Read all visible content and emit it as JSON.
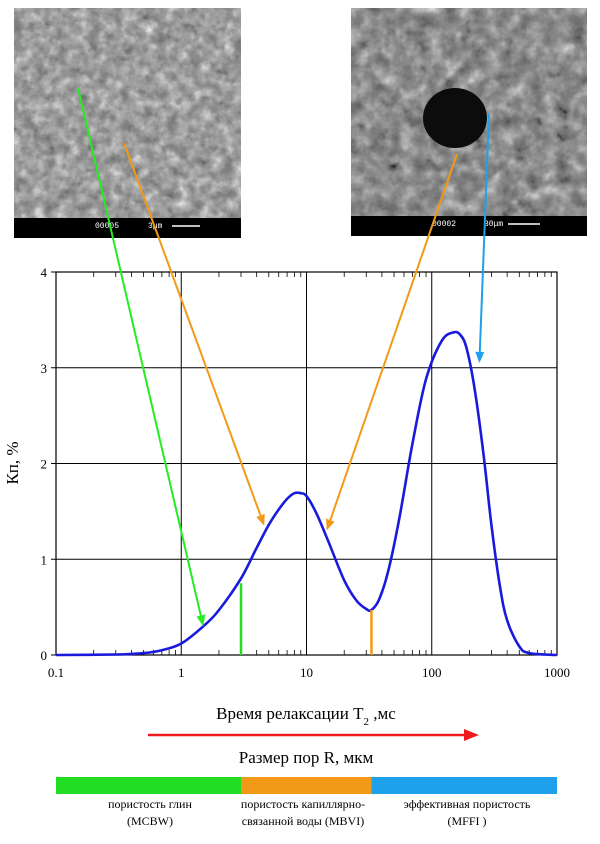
{
  "chart_data": {
    "type": "line",
    "xscale": "log",
    "xlim": [
      0.1,
      1000
    ],
    "ylim": [
      0,
      4
    ],
    "grid": true,
    "xticks": [
      "0.1",
      "1",
      "10",
      "100",
      "1000"
    ],
    "yticks": [
      "0",
      "1",
      "2",
      "3",
      "4"
    ],
    "xlabel": "Время релаксации Т",
    "xlabel_sub": "2",
    "xlabel_unit": " ,мс",
    "ylabel": "Кп, %",
    "arrow_label": "Размер пор R, мкм",
    "series": [
      {
        "color": "#1a1adc",
        "x": [
          0.1,
          0.3,
          0.5,
          0.7,
          1.0,
          1.5,
          2.0,
          3.0,
          4.0,
          5.0,
          6.0,
          7.0,
          8.0,
          9.0,
          10,
          12,
          15,
          20,
          25,
          30,
          33,
          38,
          45,
          55,
          70,
          90,
          120,
          150,
          170,
          190,
          220,
          260,
          300,
          350,
          400,
          500,
          600,
          1000
        ],
        "y": [
          0,
          0.005,
          0.02,
          0.05,
          0.12,
          0.3,
          0.47,
          0.8,
          1.12,
          1.36,
          1.52,
          1.63,
          1.69,
          1.69,
          1.66,
          1.48,
          1.18,
          0.78,
          0.57,
          0.48,
          0.47,
          0.58,
          0.88,
          1.42,
          2.2,
          2.88,
          3.28,
          3.37,
          3.34,
          3.2,
          2.78,
          2.08,
          1.35,
          0.72,
          0.36,
          0.09,
          0.02,
          0
        ]
      }
    ],
    "cutoffs": [
      {
        "x": 3,
        "y": 0.75,
        "color": "#22dd22"
      },
      {
        "x": 33,
        "y": 0.47,
        "color": "#f29a18"
      }
    ],
    "pointer_arrows": [
      {
        "color": "#22ee22",
        "to_x": 1.5,
        "to_y": 0.3
      },
      {
        "color": "#f29a18",
        "to_x": 4.6,
        "to_y": 1.35
      },
      {
        "color": "#f29a18",
        "to_x": 14.5,
        "to_y": 1.3
      },
      {
        "color": "#1ea0ea",
        "to_x": 240,
        "to_y": 3.05
      }
    ]
  },
  "images": {
    "left": {
      "scale_label": "3μm",
      "id_label": "00005"
    },
    "right": {
      "scale_label": "30μm",
      "id_label": "00002"
    }
  },
  "legend": {
    "bar_colors": [
      "#22dd22",
      "#f29a18",
      "#1ea0ea"
    ],
    "bar_breaks_x": [
      3,
      33
    ],
    "labels": [
      {
        "line1": "пористость  глин",
        "line2": "(MCBW)"
      },
      {
        "line1": "пористость капиллярно-",
        "line2": "связанной воды (MBVI)"
      },
      {
        "line1": "эффективная пористость",
        "line2": "(MFFI )"
      }
    ],
    "arrow_color": "#ee1c1c"
  }
}
